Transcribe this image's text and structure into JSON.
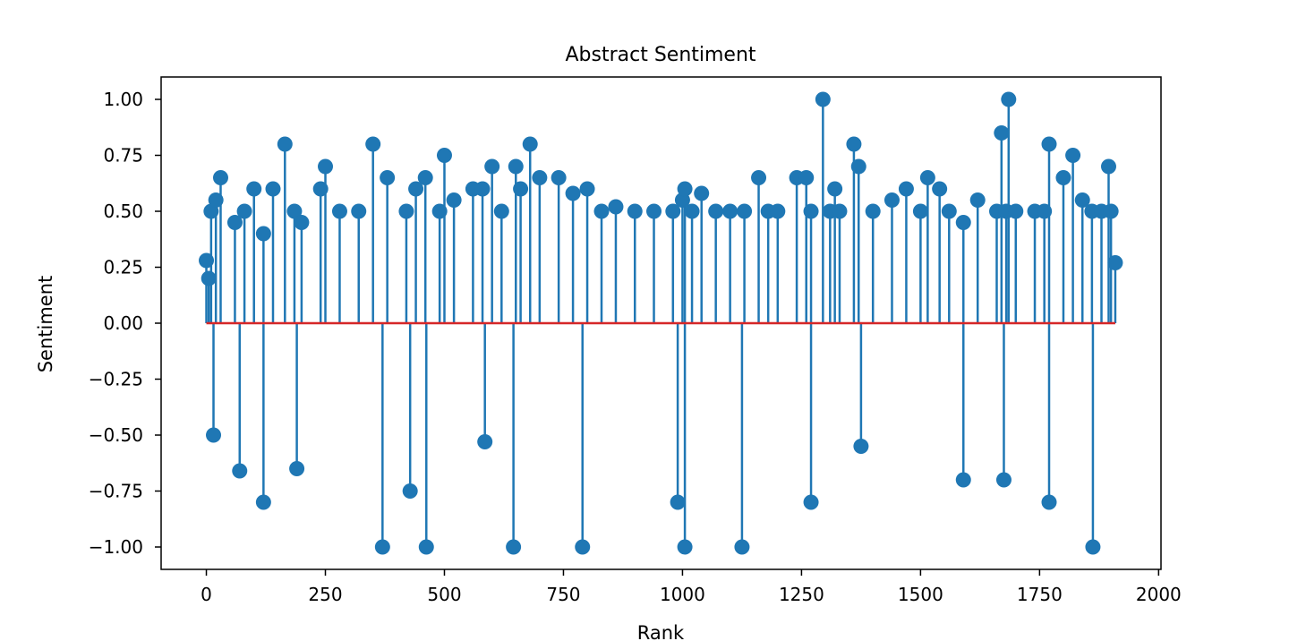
{
  "chart_data": {
    "type": "scatter",
    "subtype": "stem",
    "title": "Abstract Sentiment",
    "xlabel": "Rank",
    "ylabel": "Sentiment",
    "xlim": [
      -95,
      2005
    ],
    "ylim": [
      -1.1,
      1.1
    ],
    "xticks": [
      0,
      250,
      500,
      750,
      1000,
      1250,
      1500,
      1750,
      2000
    ],
    "yticks": [
      -1.0,
      -0.75,
      -0.5,
      -0.25,
      0.0,
      0.25,
      0.5,
      0.75,
      1.0
    ],
    "xtick_labels": [
      "0",
      "250",
      "500",
      "750",
      "1000",
      "1250",
      "1500",
      "1750",
      "2000"
    ],
    "ytick_labels": [
      "−1.00",
      "−0.75",
      "−0.50",
      "−0.25",
      "0.00",
      "0.25",
      "0.50",
      "0.75",
      "1.00"
    ],
    "grid": false,
    "legend": "none",
    "baseline": {
      "y": 0,
      "x_range": [
        0,
        1909
      ],
      "color": "#d62728"
    },
    "marker_color": "#1f77b4",
    "n_points": 1910,
    "x": [
      0,
      5,
      10,
      20,
      30,
      60,
      80,
      100,
      120,
      140,
      165,
      185,
      200,
      240,
      250,
      280,
      320,
      350,
      380,
      420,
      440,
      460,
      490,
      500,
      520,
      560,
      580,
      600,
      620,
      650,
      660,
      680,
      700,
      740,
      770,
      800,
      830,
      860,
      900,
      940,
      980,
      1000,
      1005,
      1020,
      1040,
      1070,
      1100,
      1130,
      1160,
      1180,
      1200,
      1240,
      1260,
      1270,
      1295,
      1310,
      1320,
      1330,
      1360,
      1370,
      1400,
      1440,
      1470,
      1500,
      1515,
      1540,
      1560,
      1590,
      1620,
      1660,
      1670,
      1680,
      1685,
      1700,
      1740,
      1760,
      1770,
      1800,
      1820,
      1840,
      1860,
      1880,
      1895,
      1900,
      1909,
      15,
      70,
      120,
      190,
      370,
      428,
      462,
      585,
      645,
      790,
      990,
      1005,
      1125,
      1270,
      1375,
      1590,
      1675,
      1770,
      1862
    ],
    "y": [
      0.28,
      0.2,
      0.5,
      0.55,
      0.65,
      0.45,
      0.5,
      0.6,
      0.4,
      0.6,
      0.8,
      0.5,
      0.45,
      0.6,
      0.7,
      0.5,
      0.5,
      0.8,
      0.65,
      0.5,
      0.6,
      0.65,
      0.5,
      0.75,
      0.55,
      0.6,
      0.6,
      0.7,
      0.5,
      0.7,
      0.6,
      0.8,
      0.65,
      0.65,
      0.58,
      0.6,
      0.5,
      0.52,
      0.5,
      0.5,
      0.5,
      0.55,
      0.6,
      0.5,
      0.58,
      0.5,
      0.5,
      0.5,
      0.65,
      0.5,
      0.5,
      0.65,
      0.65,
      0.5,
      1.0,
      0.5,
      0.6,
      0.5,
      0.8,
      0.7,
      0.5,
      0.55,
      0.6,
      0.5,
      0.65,
      0.6,
      0.5,
      0.45,
      0.55,
      0.5,
      0.85,
      0.5,
      1.0,
      0.5,
      0.5,
      0.5,
      0.8,
      0.65,
      0.75,
      0.55,
      0.5,
      0.5,
      0.7,
      0.5,
      0.27,
      -0.5,
      -0.66,
      -0.8,
      -0.65,
      -1.0,
      -0.75,
      -1.0,
      -0.53,
      -1.0,
      -1.0,
      -0.8,
      -1.0,
      -1.0,
      -0.8,
      -0.55,
      -0.7,
      -0.7,
      -0.8,
      -1.0
    ]
  }
}
